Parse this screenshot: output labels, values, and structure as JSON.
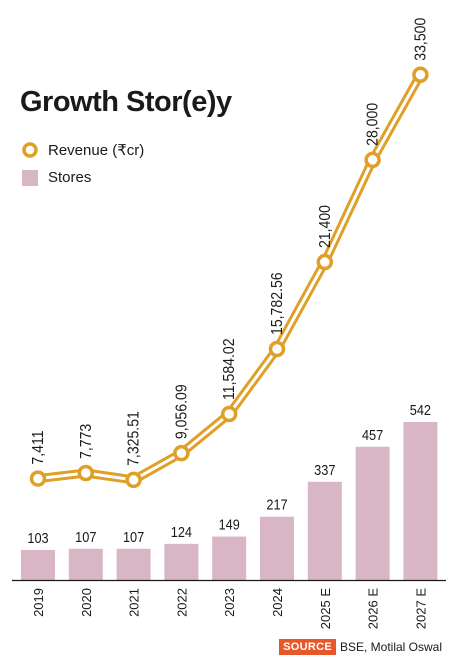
{
  "title": "Growth Stor(e)y",
  "legend": {
    "revenue": "Revenue (₹cr)",
    "stores": "Stores"
  },
  "source": {
    "tag": "SOURCE",
    "text": "BSE, Motilal Oswal"
  },
  "colors": {
    "revenue_line": "#e0a028",
    "revenue_inner": "#ffffff",
    "bar": "#d9b6c5",
    "source_tag": "#e8572a"
  },
  "chart_data": {
    "type": "bar",
    "categories": [
      "2019",
      "2020",
      "2021",
      "2022",
      "2023",
      "2024",
      "2025 E",
      "2026 E",
      "2027 E"
    ],
    "series": [
      {
        "name": "Stores",
        "type": "bar",
        "values": [
          103,
          107,
          107,
          124,
          149,
          217,
          337,
          457,
          542
        ],
        "labels": [
          "103",
          "107",
          "107",
          "124",
          "149",
          "217",
          "337",
          "457",
          "542"
        ]
      },
      {
        "name": "Revenue (₹cr)",
        "type": "line",
        "values": [
          7411,
          7773,
          7325.51,
          9056.09,
          11584.02,
          15782.56,
          21400,
          28000,
          33500
        ],
        "labels": [
          "7,411",
          "7,773",
          "7,325.51",
          "9,056.09",
          "11,584.02",
          "15,782.56",
          "21,400",
          "28,000",
          "33,500"
        ]
      }
    ],
    "title": "Growth Stor(e)y"
  }
}
